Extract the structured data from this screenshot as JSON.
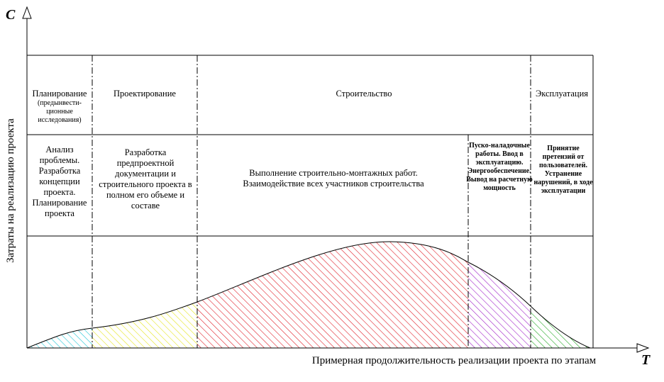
{
  "axes": {
    "y_letter": "C",
    "x_letter": "T",
    "y_label": "Затраты на реализацию проекта",
    "x_label": "Примерная продолжительность реализации проекта по этапам"
  },
  "phases": [
    {
      "name": "Планирование",
      "sub": "(предынвести-ционные исследования)"
    },
    {
      "name": "Проектирование"
    },
    {
      "name": "Строительство"
    },
    {
      "name": "Эксплуатация"
    }
  ],
  "descriptions": [
    "Анализ проблемы. Разработка концепции проекта. Планирование проекта",
    "Разработка предпроектной документации и строительного проекта в полном его объеме и составе",
    "Выполнение строительно-монтажных работ. Взаимодействие всех участников строительства",
    "Пуско-наладочные работы. Ввод в эксплуатацию. Энергообеспечение. Вывод на расчетную мощность",
    "Принятие претензий от пользователей. Устранение нарушений, в ходе эксплуатации"
  ],
  "colors": {
    "segment1": "#22c7d6",
    "segment2": "#e6e61e",
    "segment3": "#e0202a",
    "segment4": "#a020c8",
    "segment5": "#22a822"
  }
}
